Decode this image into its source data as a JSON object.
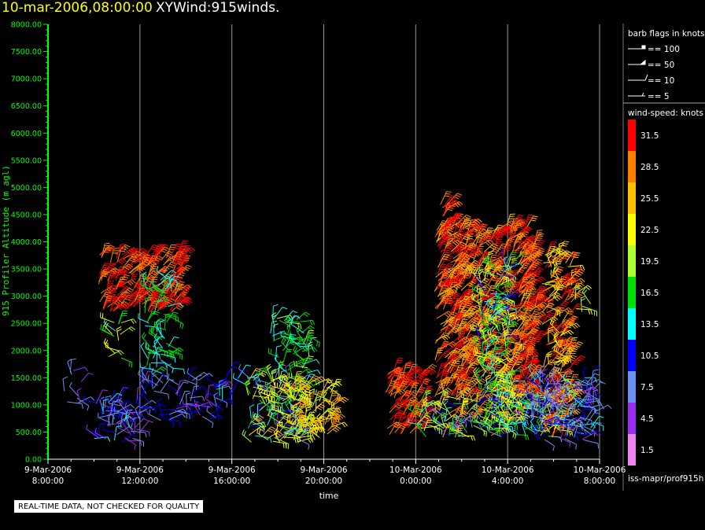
{
  "header": {
    "datetime": "10-mar-2006,08:00:00",
    "product": "XYWind:915winds."
  },
  "footer": {
    "quality_note": "REAL-TIME DATA, NOT CHECKED FOR QUALITY"
  },
  "chart_data": {
    "type": "scatter",
    "subtype": "wind-barb",
    "title": "XYWind:915winds.",
    "xlabel": "time",
    "ylabel": "915 Profiler Altitude (m agl)",
    "xlim_hours": [
      0,
      24
    ],
    "ylim": [
      0,
      8000
    ],
    "yticks": [
      "0.00",
      "500.00",
      "1000.00",
      "1500.00",
      "2000.00",
      "2500.00",
      "3000.00",
      "3500.00",
      "4000.00",
      "4500.00",
      "5000.00",
      "5500.00",
      "6000.00",
      "6500.00",
      "7000.00",
      "7500.00",
      "8000.00"
    ],
    "xticks": [
      {
        "line1": "9-Mar-2006",
        "line2": "8:00:00"
      },
      {
        "line1": "9-Mar-2006",
        "line2": "12:00:00"
      },
      {
        "line1": "9-Mar-2006",
        "line2": "16:00:00"
      },
      {
        "line1": "9-Mar-2006",
        "line2": "20:00:00"
      },
      {
        "line1": "10-Mar-2006",
        "line2": "0:00:00"
      },
      {
        "line1": "10-Mar-2006",
        "line2": "4:00:00"
      },
      {
        "line1": "10-Mar-2006",
        "line2": "8:00:00"
      }
    ],
    "vertical_gridlines": true,
    "axis_color": "#00ff00",
    "clusters": [
      {
        "t_start": 0.6,
        "t_end": 1.6,
        "z_min": 900,
        "z_max": 1650,
        "speed_min": 4,
        "speed_max": 8,
        "density": "low"
      },
      {
        "t_start": 2.0,
        "t_end": 4.0,
        "z_min": 300,
        "z_max": 1100,
        "speed_min": 3,
        "speed_max": 13,
        "density": "high"
      },
      {
        "t_start": 2.2,
        "t_end": 5.8,
        "z_min": 2700,
        "z_max": 3800,
        "speed_min": 27,
        "speed_max": 33,
        "density": "high"
      },
      {
        "t_start": 2.6,
        "t_end": 3.3,
        "z_min": 1800,
        "z_max": 2600,
        "speed_min": 13,
        "speed_max": 24,
        "density": "medium"
      },
      {
        "t_start": 4.0,
        "t_end": 7.5,
        "z_min": 700,
        "z_max": 1500,
        "speed_min": 5,
        "speed_max": 11,
        "density": "medium"
      },
      {
        "t_start": 4.2,
        "t_end": 5.4,
        "z_min": 1500,
        "z_max": 3400,
        "speed_min": 12,
        "speed_max": 18,
        "density": "medium"
      },
      {
        "t_start": 7.2,
        "t_end": 8.7,
        "z_min": 1000,
        "z_max": 1650,
        "speed_min": 10,
        "speed_max": 14,
        "density": "low"
      },
      {
        "t_start": 8.7,
        "t_end": 11.0,
        "z_min": 300,
        "z_max": 1500,
        "speed_min": 5,
        "speed_max": 26,
        "density": "high"
      },
      {
        "t_start": 9.6,
        "t_end": 11.4,
        "z_min": 1300,
        "z_max": 2600,
        "speed_min": 13,
        "speed_max": 20,
        "density": "medium"
      },
      {
        "t_start": 10.2,
        "t_end": 12.4,
        "z_min": 400,
        "z_max": 1400,
        "speed_min": 19,
        "speed_max": 28,
        "density": "high"
      },
      {
        "t_start": 14.7,
        "t_end": 16.3,
        "z_min": 450,
        "z_max": 1650,
        "speed_min": 28,
        "speed_max": 33,
        "density": "high"
      },
      {
        "t_start": 15.8,
        "t_end": 16.4,
        "z_min": 450,
        "z_max": 800,
        "speed_min": 19,
        "speed_max": 24,
        "density": "low"
      },
      {
        "t_start": 16.2,
        "t_end": 22.0,
        "z_min": 400,
        "z_max": 1200,
        "speed_min": 5,
        "speed_max": 30,
        "density": "high"
      },
      {
        "t_start": 16.8,
        "t_end": 20.8,
        "z_min": 1100,
        "z_max": 4300,
        "speed_min": 25,
        "speed_max": 33,
        "density": "high"
      },
      {
        "t_start": 16.9,
        "t_end": 17.9,
        "z_min": 3800,
        "z_max": 4700,
        "speed_min": 27,
        "speed_max": 33,
        "density": "medium"
      },
      {
        "t_start": 18.8,
        "t_end": 20.2,
        "z_min": 500,
        "z_max": 3600,
        "speed_min": 10,
        "speed_max": 24,
        "density": "high"
      },
      {
        "t_start": 20.5,
        "t_end": 21.2,
        "z_min": 1100,
        "z_max": 4000,
        "speed_min": 27,
        "speed_max": 33,
        "density": "high"
      },
      {
        "t_start": 21.5,
        "t_end": 22.8,
        "z_min": 400,
        "z_max": 3800,
        "speed_min": 22,
        "speed_max": 33,
        "density": "high"
      },
      {
        "t_start": 21.0,
        "t_end": 23.8,
        "z_min": 350,
        "z_max": 1500,
        "speed_min": 5,
        "speed_max": 14,
        "density": "high"
      },
      {
        "t_start": 22.8,
        "t_end": 23.9,
        "z_min": 2700,
        "z_max": 3100,
        "speed_min": 19,
        "speed_max": 24,
        "density": "low"
      },
      {
        "t_start": 22.8,
        "t_end": 24.0,
        "z_min": 800,
        "z_max": 1200,
        "speed_min": 4,
        "speed_max": 8,
        "density": "low"
      }
    ]
  },
  "legend": {
    "barb_title": "barb flags in knots",
    "barb_items": [
      {
        "label": "== 100",
        "kind": "flag"
      },
      {
        "label": "== 50",
        "kind": "pennant"
      },
      {
        "label": "== 10",
        "kind": "full"
      },
      {
        "label": "== 5",
        "kind": "half"
      }
    ],
    "colorbar_title": "wind-speed: knots",
    "colorbar": [
      {
        "label": "31.5",
        "color": "#ff0000"
      },
      {
        "label": "28.5",
        "color": "#ff7f00"
      },
      {
        "label": "25.5",
        "color": "#ffbf00"
      },
      {
        "label": "22.5",
        "color": "#ffff00"
      },
      {
        "label": "19.5",
        "color": "#b0ff30"
      },
      {
        "label": "16.5",
        "color": "#00e000"
      },
      {
        "label": "13.5",
        "color": "#00ffff"
      },
      {
        "label": "10.5",
        "color": "#0000ff"
      },
      {
        "label": "7.5",
        "color": "#6a90f0"
      },
      {
        "label": "4.5",
        "color": "#9a2df0"
      },
      {
        "label": "1.5",
        "color": "#ee82ee"
      }
    ],
    "source": "iss-mapr/prof915h"
  }
}
